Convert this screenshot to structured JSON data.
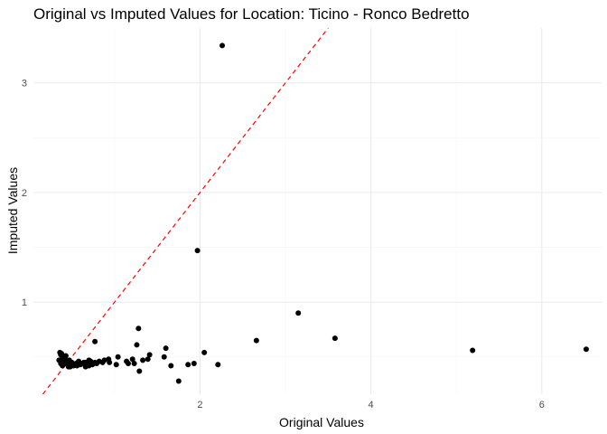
{
  "chart_data": {
    "type": "scatter",
    "title": "Original vs Imputed Values for Location: Ticino - Ronco Bedretto",
    "xlabel": "Original Values",
    "ylabel": "Imputed Values",
    "xlim": [
      0.05,
      6.7
    ],
    "ylim": [
      0.16,
      3.5
    ],
    "xticks": [
      2,
      4,
      6
    ],
    "yticks": [
      1,
      2,
      3
    ],
    "x_minor_ticks": [
      1,
      3,
      5
    ],
    "y_minor_ticks": [
      0.5,
      1.5,
      2.5
    ],
    "grid": true,
    "legend": "none",
    "point_color": "#000000",
    "reference_line": {
      "type": "identity",
      "slope": 1,
      "intercept": 0,
      "color": "#ff0000",
      "style": "dashed"
    },
    "series": [
      {
        "x": [
          2.26,
          1.97,
          3.15,
          2.66,
          3.58,
          5.19,
          6.52,
          1.28,
          1.26,
          1.6,
          2.05,
          1.58,
          1.41,
          1.33,
          1.21,
          1.14,
          1.04,
          0.94,
          0.88,
          0.82,
          0.77,
          0.7,
          0.66,
          0.62,
          0.58,
          0.55,
          0.5,
          0.47,
          0.44,
          0.42,
          0.4,
          0.38,
          0.36,
          0.35,
          0.37,
          0.39,
          0.41,
          0.45,
          0.52,
          0.57,
          0.6,
          0.64,
          0.68,
          0.72,
          0.79,
          0.86,
          0.93,
          1.02,
          1.16,
          1.23,
          1.39,
          1.66,
          1.86,
          1.93,
          2.21,
          1.29,
          1.75,
          0.39,
          0.43,
          0.48,
          0.53,
          0.37,
          0.41,
          0.46,
          0.5,
          0.56,
          0.61,
          0.66,
          0.7,
          0.74,
          0.77
        ],
        "y": [
          3.34,
          1.47,
          0.9,
          0.65,
          0.67,
          0.56,
          0.57,
          0.76,
          0.61,
          0.58,
          0.54,
          0.5,
          0.52,
          0.47,
          0.48,
          0.46,
          0.5,
          0.45,
          0.47,
          0.46,
          0.64,
          0.47,
          0.45,
          0.44,
          0.46,
          0.44,
          0.45,
          0.47,
          0.46,
          0.48,
          0.5,
          0.53,
          0.54,
          0.47,
          0.44,
          0.42,
          0.45,
          0.43,
          0.42,
          0.45,
          0.43,
          0.45,
          0.44,
          0.46,
          0.44,
          0.45,
          0.48,
          0.43,
          0.44,
          0.44,
          0.48,
          0.42,
          0.43,
          0.44,
          0.43,
          0.37,
          0.28,
          0.49,
          0.51,
          0.41,
          0.43,
          0.52,
          0.47,
          0.41,
          0.43,
          0.42,
          0.44,
          0.41,
          0.42,
          0.43,
          0.45
        ]
      }
    ]
  }
}
